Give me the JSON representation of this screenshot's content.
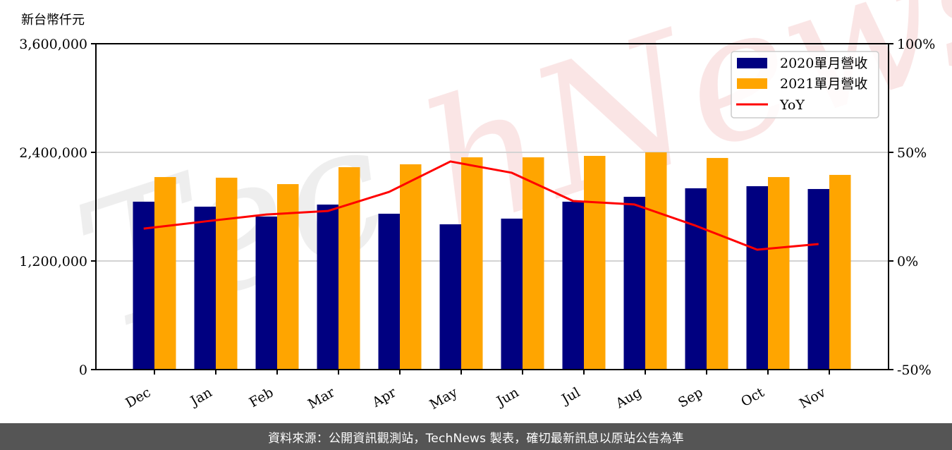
{
  "chart_data": {
    "type": "bar",
    "title": "",
    "ylabel": "新台幣仟元",
    "xlabel": "",
    "categories": [
      "Dec",
      "Jan",
      "Feb",
      "Mar",
      "Apr",
      "May",
      "Jun",
      "Jul",
      "Aug",
      "Sep",
      "Oct",
      "Nov"
    ],
    "series": [
      {
        "name": "2020單月營收",
        "type": "bar",
        "axis": "left",
        "color": "#000080",
        "values": [
          1855000,
          1800000,
          1691000,
          1823000,
          1722000,
          1605000,
          1668000,
          1855000,
          1909000,
          2003000,
          2026000,
          1995000
        ]
      },
      {
        "name": "2021單月營收",
        "type": "bar",
        "axis": "left",
        "color": "#FFA500",
        "values": [
          2127000,
          2120000,
          2049000,
          2236000,
          2268000,
          2345000,
          2345000,
          2361000,
          2400000,
          2338000,
          2127000,
          2151000
        ]
      },
      {
        "name": "YoY",
        "type": "line",
        "axis": "right",
        "color": "#FF0000",
        "values": [
          14.9,
          18.2,
          21.4,
          23.0,
          31.8,
          45.8,
          40.6,
          27.6,
          26.0,
          16.2,
          5.2,
          7.8
        ]
      }
    ],
    "ylim": [
      0,
      3600000
    ],
    "y_ticks": [
      0,
      1200000,
      2400000,
      3600000
    ],
    "y_tick_labels": [
      "0",
      "1,200,000",
      "2,400,000",
      "3,600,000"
    ],
    "y2lim": [
      -50,
      100
    ],
    "y2_ticks": [
      -50,
      0,
      50,
      100
    ],
    "y2_tick_labels": [
      "-50%",
      "0%",
      "50%",
      "100%"
    ],
    "grid": {
      "horizontal": true,
      "vertical": false
    },
    "legend": {
      "position": "upper right"
    },
    "x_tick_rotation": -30,
    "watermark": "TechNews"
  },
  "footer": {
    "source_text": "資料來源：公開資訊觀測站，TechNews 製表，確切最新訊息以原站公告為準"
  }
}
